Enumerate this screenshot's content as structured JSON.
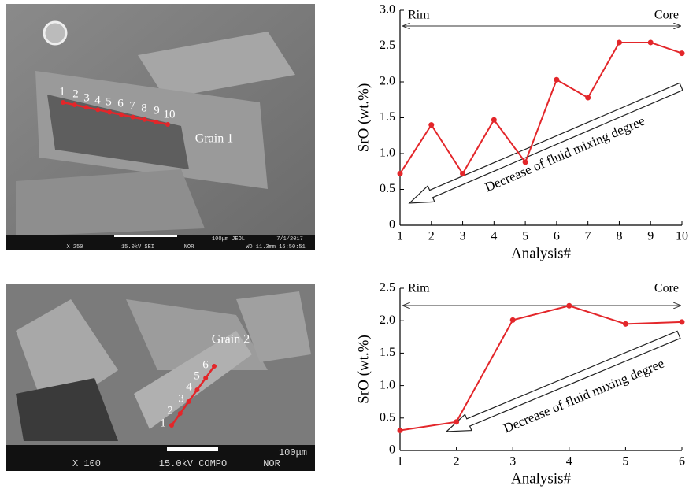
{
  "chart_data": [
    {
      "type": "line",
      "xlabel": "Analysis#",
      "ylabel": "SrO (wt.%)",
      "x": [
        1,
        2,
        3,
        4,
        5,
        6,
        7,
        8,
        9,
        10
      ],
      "values": [
        0.72,
        1.4,
        0.72,
        1.47,
        0.88,
        2.03,
        1.78,
        2.55,
        2.55,
        2.4
      ],
      "color": "#e3262a",
      "xlim": [
        1,
        10
      ],
      "xticks": [
        1,
        2,
        3,
        4,
        5,
        6,
        7,
        8,
        9,
        10
      ],
      "ylim": [
        0,
        3
      ],
      "yticks": [
        0,
        0.5,
        {
          "value": 1,
          "label": "1.0"
        },
        1.5,
        {
          "value": 2,
          "label": "2.0"
        },
        2.5,
        {
          "value": 3,
          "label": "3.0"
        }
      ],
      "annotations": {
        "rim": "Rim",
        "core": "Core",
        "arrow": "Decrease of fluid mixing degree"
      }
    },
    {
      "type": "line",
      "xlabel": "Analysis#",
      "ylabel": "SrO (wt.%)",
      "x": [
        1,
        2,
        3,
        4,
        5,
        6
      ],
      "values": [
        0.31,
        0.44,
        2.01,
        2.23,
        1.95,
        1.98
      ],
      "color": "#e3262a",
      "xlim": [
        1,
        6
      ],
      "xticks": [
        1,
        2,
        3,
        4,
        5,
        6
      ],
      "ylim": [
        0,
        2.5
      ],
      "yticks": [
        0,
        0.5,
        {
          "value": 1,
          "label": "1.0"
        },
        1.5,
        {
          "value": 2,
          "label": "2.0"
        },
        2.5
      ],
      "annotations": {
        "rim": "Rim",
        "core": "Core",
        "arrow": "Decrease of fluid mixing degree"
      }
    }
  ],
  "images": [
    {
      "points": [
        "1",
        "2",
        "3",
        "4",
        "5",
        "6",
        "7",
        "8",
        "9",
        "10"
      ],
      "grain": "Grain 1",
      "info": [
        "X 250",
        "15.0kV SEI",
        "NOR",
        "100μm JEOL",
        "7/1/2017",
        "WD 11.3mm 16:50:51"
      ]
    },
    {
      "points": [
        "1",
        "2",
        "3",
        "4",
        "5",
        "6"
      ],
      "grain": "Grain 2",
      "info": [
        "X 100",
        "15.0kV COMPO",
        "NOR",
        "100μm"
      ]
    }
  ]
}
